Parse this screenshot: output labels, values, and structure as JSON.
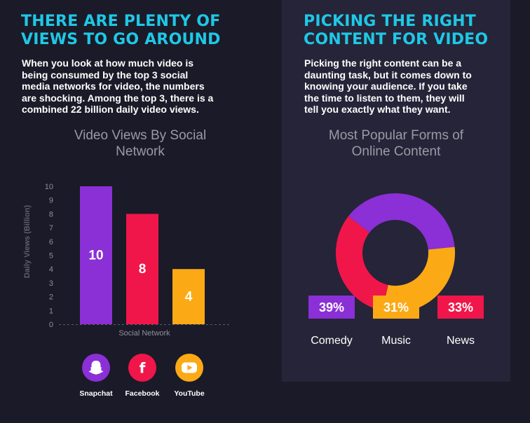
{
  "left": {
    "heading_line1": "THERE ARE PLENTY OF",
    "heading_line2": "VIEWS TO GO AROUND",
    "body_lines": [
      "When you look at how much video is",
      "being consumed by the top 3 social",
      "media networks for video, the numbers",
      "are shocking. Among the top 3, there is a",
      "combined 22 billion daily video views."
    ]
  },
  "right": {
    "heading_line1": "PICKING THE RIGHT",
    "heading_line2": "CONTENT FOR VIDEO",
    "body_lines": [
      "Picking the right content can be a",
      "daunting task, but it comes down to",
      "knowing your audience. If you take",
      "the time to listen to them, they will",
      "tell you exactly what they want."
    ]
  },
  "social": [
    {
      "label": "Snapchat",
      "icon": "snapchat-ghost-icon",
      "color": "#8b2fd6"
    },
    {
      "label": "Facebook",
      "icon": "facebook-icon",
      "color": "#f0164a"
    },
    {
      "label": "YouTube",
      "icon": "youtube-play-icon",
      "color": "#fbaa16"
    }
  ],
  "chart_data": [
    {
      "type": "bar",
      "title_lines": [
        "Video Views By Social",
        "Network"
      ],
      "xlabel": "Social Network",
      "ylabel": "Daily Views (Billion)",
      "ylim": [
        0,
        10
      ],
      "yticks": [
        0,
        1,
        2,
        3,
        4,
        5,
        6,
        7,
        8,
        9,
        10
      ],
      "categories": [
        "Snapchat",
        "Facebook",
        "YouTube"
      ],
      "values": [
        10,
        8,
        4
      ],
      "data_labels": [
        "10",
        "8",
        "4"
      ],
      "colors": [
        "#8b2fd6",
        "#f0164a",
        "#fbaa16"
      ],
      "grid": false
    },
    {
      "type": "pie",
      "donut": true,
      "title_lines": [
        "Most Popular Forms of",
        "Online Content"
      ],
      "labels": [
        "Comedy",
        "Music",
        "News"
      ],
      "values": [
        39,
        31,
        33
      ],
      "value_labels": [
        "39%",
        "31%",
        "33%"
      ],
      "colors": [
        "#8b2fd6",
        "#fbaa16",
        "#f0164a"
      ]
    }
  ]
}
